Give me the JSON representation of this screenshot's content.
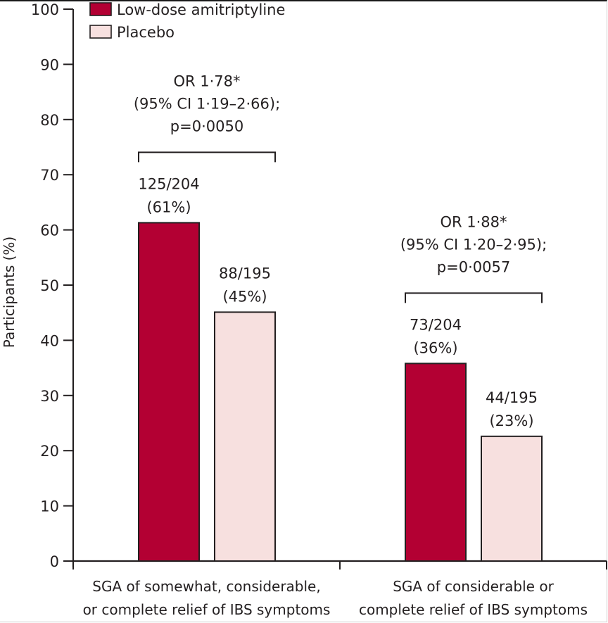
{
  "chart_data": {
    "type": "bar",
    "title": "",
    "xlabel": "",
    "ylabel": "Participants (%)",
    "ylim": [
      0,
      100
    ],
    "yticks": [
      0,
      10,
      20,
      30,
      40,
      50,
      60,
      70,
      80,
      90,
      100
    ],
    "grid": false,
    "legend_position": "top-left",
    "categories": [
      [
        "SGA of somewhat, considerable,",
        "or complete relief of IBS symptoms"
      ],
      [
        "SGA of considerable or",
        "complete relief of IBS symptoms"
      ]
    ],
    "series": [
      {
        "name": "Low-dose amitriptyline",
        "color": "#b30033",
        "values": [
          61.3,
          35.8
        ],
        "labels": [
          [
            "125/204",
            "(61%)"
          ],
          [
            "73/204",
            "(36%)"
          ]
        ]
      },
      {
        "name": "Placebo",
        "color": "#f7e0df",
        "values": [
          45.1,
          22.6
        ],
        "labels": [
          [
            "88/195",
            "(45%)"
          ],
          [
            "44/195",
            "(23%)"
          ]
        ]
      }
    ],
    "annotations": [
      {
        "category": 0,
        "lines": [
          "OR 1·78*",
          "(95% CI 1·19–2·66);",
          "p=0·0050"
        ]
      },
      {
        "category": 1,
        "lines": [
          "OR 1·88*",
          "(95% CI 1·20–2·95);",
          "p=0·0057"
        ]
      }
    ]
  }
}
